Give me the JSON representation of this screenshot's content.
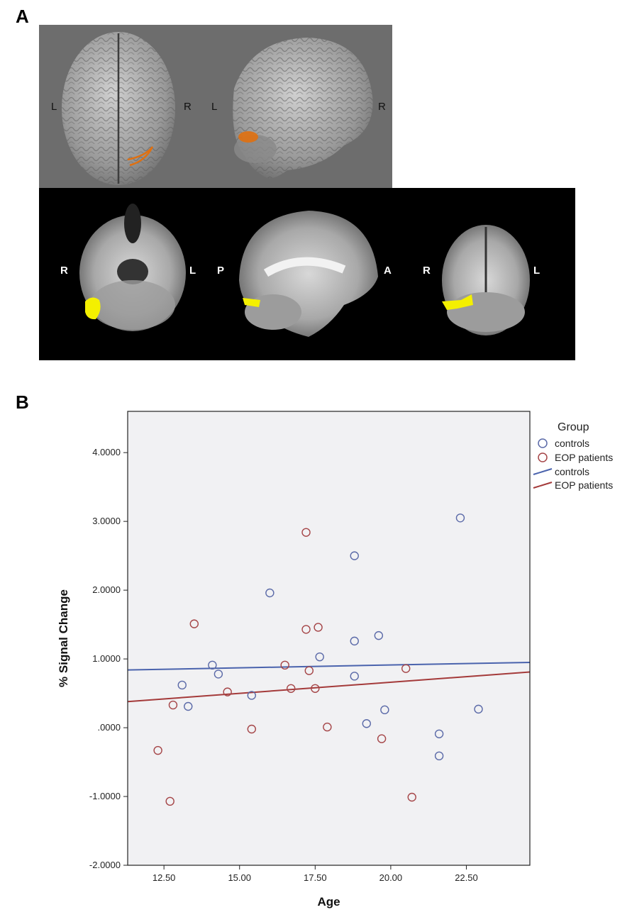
{
  "panels": {
    "a_label": "A",
    "b_label": "B"
  },
  "panel_a": {
    "top_left_labels": [
      "L",
      "R"
    ],
    "top_right_labels": [
      "L",
      "R"
    ],
    "axial_labels": [
      "R",
      "L"
    ],
    "sagittal_labels": [
      "P",
      "A"
    ],
    "coronal_labels": [
      "R",
      "L"
    ],
    "colors": {
      "render_background": "#6d6d6d",
      "slice_background": "#000000",
      "cluster_render": "#e07010",
      "cluster_slice": "#f4f000"
    }
  },
  "chart_data": {
    "type": "scatter",
    "title": "",
    "xlabel": "Age",
    "ylabel": "% Signal Change",
    "xlim": [
      11.3,
      24.6
    ],
    "ylim": [
      -2.0,
      4.6
    ],
    "x_ticks": [
      12.5,
      15.0,
      17.5,
      20.0,
      22.5
    ],
    "x_tick_labels": [
      "12.50",
      "15.00",
      "17.50",
      "20.00",
      "22.50"
    ],
    "y_ticks": [
      -2,
      -1,
      0,
      1,
      2,
      3,
      4
    ],
    "y_tick_labels": [
      "-2.0000",
      "-1.0000",
      ".0000",
      "1.0000",
      "2.0000",
      "3.0000",
      "4.0000"
    ],
    "plot_background": "#f1f1f3",
    "legend": {
      "title": "Group",
      "placement": "right",
      "entries": [
        {
          "label": "controls",
          "kind": "marker",
          "color": "#5b6aa8"
        },
        {
          "label": "EOP patients",
          "kind": "marker",
          "color": "#a54547"
        },
        {
          "label": "controls",
          "kind": "line",
          "color": "#4a63ad"
        },
        {
          "label": "EOP patients",
          "kind": "line",
          "color": "#a43a3a"
        }
      ]
    },
    "series": [
      {
        "name": "controls",
        "color": "#5b6aa8",
        "points": [
          [
            13.1,
            0.62
          ],
          [
            13.3,
            0.31
          ],
          [
            14.1,
            0.91
          ],
          [
            14.3,
            0.78
          ],
          [
            15.4,
            0.47
          ],
          [
            16.0,
            1.96
          ],
          [
            17.65,
            1.03
          ],
          [
            18.8,
            2.5
          ],
          [
            18.8,
            1.26
          ],
          [
            18.8,
            0.75
          ],
          [
            19.2,
            0.06
          ],
          [
            19.6,
            1.34
          ],
          [
            19.8,
            0.26
          ],
          [
            21.6,
            -0.09
          ],
          [
            21.6,
            -0.41
          ],
          [
            22.3,
            3.05
          ],
          [
            22.9,
            0.27
          ]
        ],
        "fit": [
          [
            11.3,
            0.84
          ],
          [
            24.6,
            0.95
          ]
        ]
      },
      {
        "name": "EOP patients",
        "color": "#a54547",
        "points": [
          [
            12.3,
            -0.33
          ],
          [
            12.7,
            -1.07
          ],
          [
            12.8,
            0.33
          ],
          [
            13.5,
            1.51
          ],
          [
            14.6,
            0.52
          ],
          [
            15.4,
            -0.02
          ],
          [
            16.5,
            0.91
          ],
          [
            16.7,
            0.57
          ],
          [
            17.2,
            2.84
          ],
          [
            17.2,
            1.43
          ],
          [
            17.3,
            0.83
          ],
          [
            17.5,
            0.57
          ],
          [
            17.6,
            1.46
          ],
          [
            17.9,
            0.01
          ],
          [
            19.7,
            -0.16
          ],
          [
            20.5,
            0.86
          ],
          [
            20.7,
            -1.01
          ]
        ],
        "fit": [
          [
            11.3,
            0.38
          ],
          [
            24.6,
            0.81
          ]
        ]
      }
    ]
  }
}
